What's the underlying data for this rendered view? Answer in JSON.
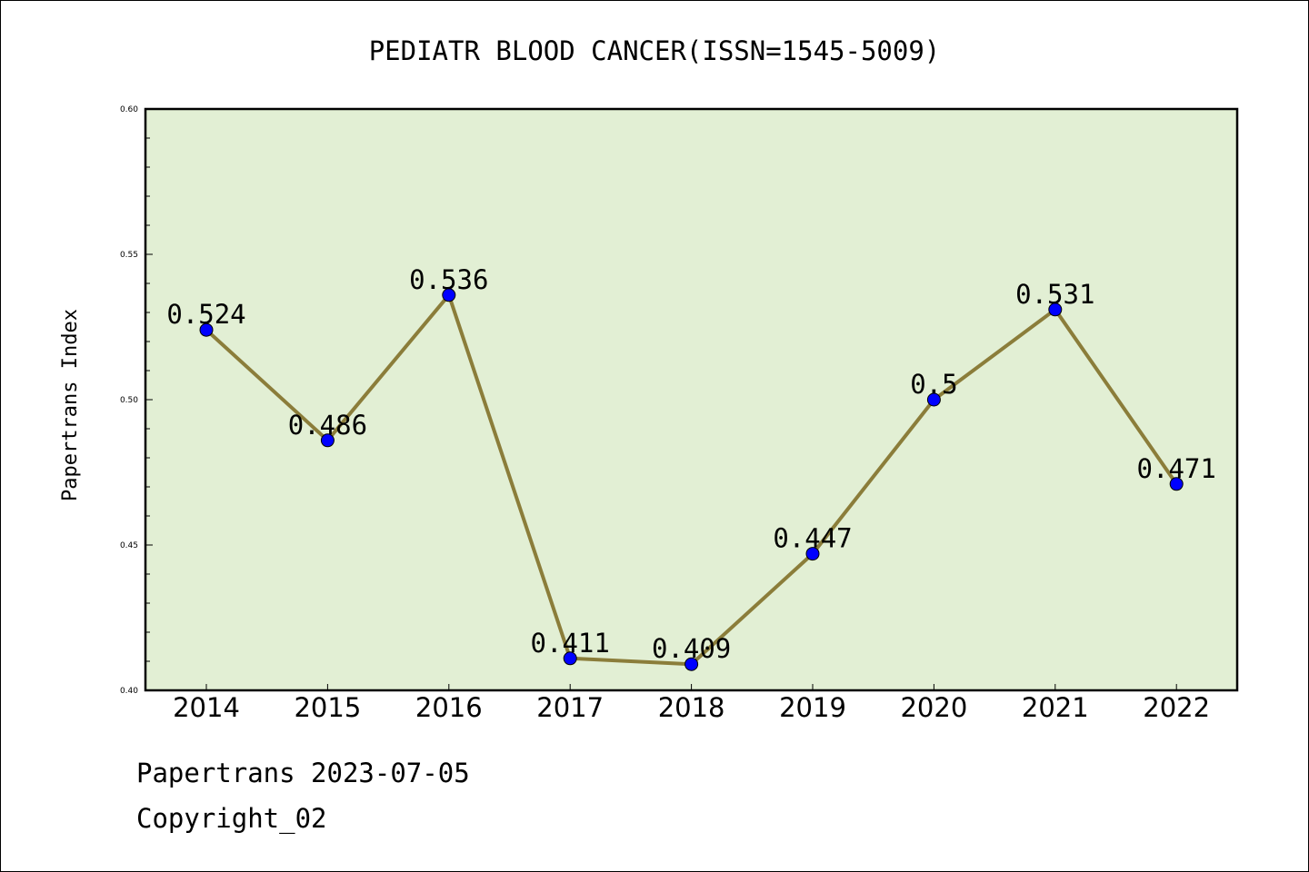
{
  "chart_data": {
    "type": "line",
    "title": "PEDIATR BLOOD CANCER(ISSN=1545-5009)",
    "xlabel": "",
    "ylabel": "Papertrans Index",
    "categories": [
      "2014",
      "2015",
      "2016",
      "2017",
      "2018",
      "2019",
      "2020",
      "2021",
      "2022"
    ],
    "values": [
      0.524,
      0.486,
      0.536,
      0.411,
      0.409,
      0.447,
      0.5,
      0.531,
      0.471
    ],
    "data_labels": [
      "0.524",
      "0.486",
      "0.536",
      "0.411",
      "0.409",
      "0.447",
      "0.5",
      "0.531",
      "0.471"
    ],
    "ylim": [
      0.4,
      0.6
    ],
    "yticks": [
      "0.40",
      "0.45",
      "0.50",
      "0.55",
      "0.60"
    ],
    "grid": false,
    "colors": {
      "plot_background": "#e2efd4",
      "line": "#8b7d3a",
      "marker": "#0000ff"
    }
  },
  "footer": {
    "line1": "Papertrans 2023-07-05",
    "line2": "Copyright_02"
  }
}
